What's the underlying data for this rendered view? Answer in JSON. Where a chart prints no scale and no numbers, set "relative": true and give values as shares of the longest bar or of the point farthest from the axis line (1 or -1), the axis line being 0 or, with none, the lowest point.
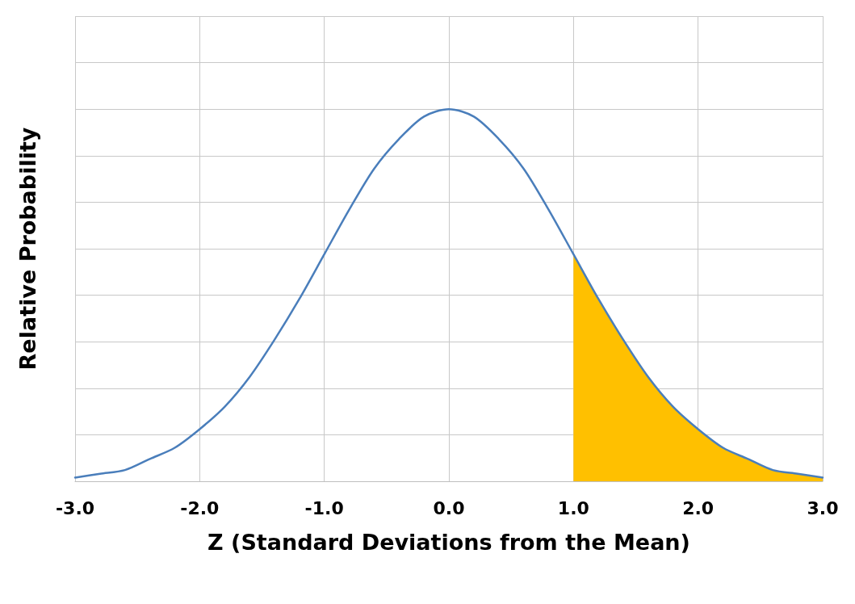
{
  "chart_data": {
    "type": "line",
    "relative": true,
    "xlabel": "Z (Standard Deviations from the Mean)",
    "ylabel": "Relative Probability",
    "xlim": [
      -3,
      3
    ],
    "xticks": [
      {
        "value": -3,
        "label": "-3.0"
      },
      {
        "value": -2,
        "label": "-2.0"
      },
      {
        "value": -1,
        "label": "-1.0"
      },
      {
        "value": 0,
        "label": "0.0"
      },
      {
        "value": 1,
        "label": "1.0"
      },
      {
        "value": 2,
        "label": "2.0"
      },
      {
        "value": 3,
        "label": "3.0"
      }
    ],
    "grid": true,
    "marker": "none",
    "line_style": "solid",
    "series": [
      {
        "type": "area",
        "color": "#ffc000",
        "x": [
          1,
          1.2,
          1.4,
          1.6,
          1.8,
          2,
          2.2,
          2.4,
          2.6,
          2.8,
          3
        ],
        "values": [
          0.61,
          0.49,
          0.38,
          0.28,
          0.2,
          0.14,
          0.09,
          0.06,
          0.03,
          0.02,
          0.01
        ]
      },
      {
        "type": "line",
        "color": "#4a7ebb",
        "x": [
          -3,
          -2.8,
          -2.6,
          -2.4,
          -2.2,
          -2,
          -1.8,
          -1.6,
          -1.4,
          -1.2,
          -1,
          -0.8,
          -0.6,
          -0.4,
          -0.2,
          0,
          0.2,
          0.4,
          0.6,
          0.8,
          1,
          1.2,
          1.4,
          1.6,
          1.8,
          2,
          2.2,
          2.4,
          2.6,
          2.8,
          3
        ],
        "values": [
          0.01,
          0.02,
          0.03,
          0.06,
          0.09,
          0.14,
          0.2,
          0.28,
          0.38,
          0.49,
          0.61,
          0.73,
          0.84,
          0.92,
          0.98,
          1,
          0.98,
          0.92,
          0.84,
          0.73,
          0.61,
          0.49,
          0.38,
          0.28,
          0.2,
          0.14,
          0.09,
          0.06,
          0.03,
          0.02,
          0.01
        ]
      }
    ]
  }
}
